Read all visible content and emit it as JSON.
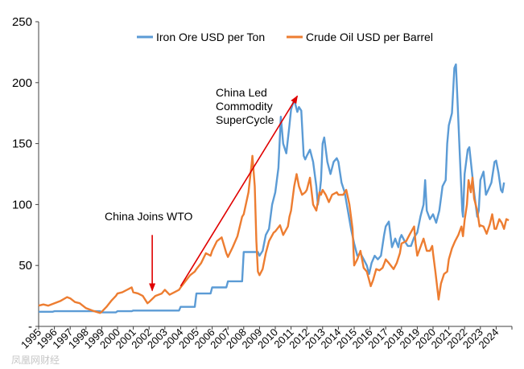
{
  "chart_data": {
    "type": "line",
    "title": "",
    "xlabel": "",
    "ylabel": "",
    "xlim": [
      1995,
      2025
    ],
    "ylim": [
      0,
      250
    ],
    "yticks": [
      0,
      50,
      100,
      150,
      200,
      250
    ],
    "ytick_labels": [
      "-",
      "50",
      "100",
      "150",
      "200",
      "250"
    ],
    "xtick_labels": [
      "1995",
      "1996",
      "1997",
      "1998",
      "1999",
      "2000",
      "2001",
      "2002",
      "2003",
      "2004",
      "2005",
      "2006",
      "2007",
      "2008",
      "2009",
      "2010",
      "2011",
      "2012",
      "2013",
      "2014",
      "2015",
      "2016",
      "2017",
      "2018",
      "2019",
      "2020",
      "2021",
      "2022",
      "2023",
      "2024"
    ],
    "grid": false,
    "legend_position": "top",
    "series": [
      {
        "name": "Iron Ore USD per Ton",
        "color": "#5b9bd5",
        "points": [
          [
            1995.0,
            12
          ],
          [
            1995.9,
            12
          ],
          [
            1996.0,
            12.5
          ],
          [
            1998.9,
            12.5
          ],
          [
            1999.0,
            11.5
          ],
          [
            1999.9,
            11.5
          ],
          [
            2000.0,
            12.5
          ],
          [
            2000.9,
            12.5
          ],
          [
            2001.0,
            13
          ],
          [
            2003.9,
            13
          ],
          [
            2004.0,
            16
          ],
          [
            2004.9,
            16
          ],
          [
            2005.0,
            27
          ],
          [
            2005.9,
            27
          ],
          [
            2006.0,
            32
          ],
          [
            2006.9,
            32
          ],
          [
            2007.0,
            37
          ],
          [
            2007.9,
            37
          ],
          [
            2008.0,
            61
          ],
          [
            2008.9,
            61
          ],
          [
            2009.0,
            58
          ],
          [
            2009.2,
            62
          ],
          [
            2009.4,
            75
          ],
          [
            2009.6,
            80
          ],
          [
            2009.8,
            100
          ],
          [
            2010.0,
            110
          ],
          [
            2010.2,
            130
          ],
          [
            2010.35,
            172
          ],
          [
            2010.5,
            150
          ],
          [
            2010.7,
            142
          ],
          [
            2010.9,
            165
          ],
          [
            2011.0,
            178
          ],
          [
            2011.2,
            186
          ],
          [
            2011.4,
            176
          ],
          [
            2011.5,
            180
          ],
          [
            2011.65,
            177
          ],
          [
            2011.8,
            140
          ],
          [
            2011.9,
            137
          ],
          [
            2012.0,
            140
          ],
          [
            2012.2,
            145
          ],
          [
            2012.4,
            135
          ],
          [
            2012.6,
            115
          ],
          [
            2012.7,
            100
          ],
          [
            2012.8,
            108
          ],
          [
            2012.9,
            120
          ],
          [
            2013.0,
            150
          ],
          [
            2013.1,
            155
          ],
          [
            2013.3,
            135
          ],
          [
            2013.5,
            125
          ],
          [
            2013.7,
            135
          ],
          [
            2013.9,
            138
          ],
          [
            2014.0,
            135
          ],
          [
            2014.2,
            118
          ],
          [
            2014.4,
            110
          ],
          [
            2014.6,
            95
          ],
          [
            2014.8,
            80
          ],
          [
            2015.0,
            68
          ],
          [
            2015.2,
            58
          ],
          [
            2015.4,
            60
          ],
          [
            2015.6,
            55
          ],
          [
            2015.8,
            50
          ],
          [
            2015.95,
            43
          ],
          [
            2016.1,
            52
          ],
          [
            2016.3,
            58
          ],
          [
            2016.5,
            55
          ],
          [
            2016.7,
            58
          ],
          [
            2016.9,
            75
          ],
          [
            2017.0,
            82
          ],
          [
            2017.2,
            86
          ],
          [
            2017.4,
            65
          ],
          [
            2017.6,
            72
          ],
          [
            2017.8,
            65
          ],
          [
            2017.9,
            72
          ],
          [
            2018.0,
            75
          ],
          [
            2018.2,
            70
          ],
          [
            2018.4,
            66
          ],
          [
            2018.6,
            66
          ],
          [
            2018.8,
            73
          ],
          [
            2019.0,
            77
          ],
          [
            2019.2,
            90
          ],
          [
            2019.4,
            100
          ],
          [
            2019.5,
            120
          ],
          [
            2019.6,
            95
          ],
          [
            2019.8,
            88
          ],
          [
            2020.0,
            92
          ],
          [
            2020.2,
            85
          ],
          [
            2020.4,
            95
          ],
          [
            2020.6,
            115
          ],
          [
            2020.8,
            120
          ],
          [
            2020.9,
            150
          ],
          [
            2021.0,
            165
          ],
          [
            2021.2,
            175
          ],
          [
            2021.35,
            212
          ],
          [
            2021.45,
            215
          ],
          [
            2021.55,
            185
          ],
          [
            2021.7,
            140
          ],
          [
            2021.85,
            95
          ],
          [
            2021.9,
            90
          ],
          [
            2022.0,
            125
          ],
          [
            2022.2,
            145
          ],
          [
            2022.3,
            147
          ],
          [
            2022.4,
            135
          ],
          [
            2022.6,
            110
          ],
          [
            2022.8,
            90
          ],
          [
            2022.9,
            95
          ],
          [
            2023.0,
            120
          ],
          [
            2023.2,
            127
          ],
          [
            2023.35,
            108
          ],
          [
            2023.5,
            112
          ],
          [
            2023.7,
            118
          ],
          [
            2023.9,
            135
          ],
          [
            2024.0,
            136
          ],
          [
            2024.15,
            126
          ],
          [
            2024.3,
            112
          ],
          [
            2024.4,
            110
          ],
          [
            2024.5,
            118
          ]
        ]
      },
      {
        "name": "Crude Oil USD per Barrel",
        "color": "#ed7d31",
        "points": [
          [
            1995.0,
            17
          ],
          [
            1995.3,
            18
          ],
          [
            1995.6,
            17
          ],
          [
            1996.0,
            19
          ],
          [
            1996.4,
            21
          ],
          [
            1996.8,
            24
          ],
          [
            1997.0,
            23
          ],
          [
            1997.3,
            20
          ],
          [
            1997.6,
            19
          ],
          [
            1998.0,
            15
          ],
          [
            1998.4,
            13
          ],
          [
            1998.9,
            11
          ],
          [
            1999.0,
            12
          ],
          [
            1999.3,
            16
          ],
          [
            1999.6,
            21
          ],
          [
            1999.9,
            25
          ],
          [
            2000.0,
            27
          ],
          [
            2000.3,
            28
          ],
          [
            2000.6,
            30
          ],
          [
            2000.9,
            32
          ],
          [
            2001.0,
            28
          ],
          [
            2001.3,
            27
          ],
          [
            2001.6,
            25
          ],
          [
            2001.9,
            19
          ],
          [
            2002.0,
            20
          ],
          [
            2002.4,
            25
          ],
          [
            2002.8,
            27
          ],
          [
            2003.0,
            30
          ],
          [
            2003.3,
            26
          ],
          [
            2003.6,
            28
          ],
          [
            2003.9,
            30
          ],
          [
            2004.0,
            32
          ],
          [
            2004.3,
            37
          ],
          [
            2004.6,
            42
          ],
          [
            2004.9,
            45
          ],
          [
            2005.0,
            47
          ],
          [
            2005.3,
            52
          ],
          [
            2005.6,
            60
          ],
          [
            2005.9,
            58
          ],
          [
            2006.0,
            62
          ],
          [
            2006.3,
            70
          ],
          [
            2006.6,
            73
          ],
          [
            2006.9,
            60
          ],
          [
            2007.0,
            57
          ],
          [
            2007.3,
            65
          ],
          [
            2007.6,
            74
          ],
          [
            2007.9,
            90
          ],
          [
            2008.0,
            92
          ],
          [
            2008.3,
            110
          ],
          [
            2008.5,
            133
          ],
          [
            2008.55,
            140
          ],
          [
            2008.7,
            115
          ],
          [
            2008.8,
            70
          ],
          [
            2008.9,
            45
          ],
          [
            2009.0,
            42
          ],
          [
            2009.2,
            47
          ],
          [
            2009.4,
            60
          ],
          [
            2009.6,
            70
          ],
          [
            2009.9,
            77
          ],
          [
            2010.0,
            78
          ],
          [
            2010.3,
            83
          ],
          [
            2010.5,
            75
          ],
          [
            2010.8,
            82
          ],
          [
            2010.9,
            90
          ],
          [
            2011.0,
            95
          ],
          [
            2011.2,
            115
          ],
          [
            2011.35,
            125
          ],
          [
            2011.5,
            115
          ],
          [
            2011.7,
            108
          ],
          [
            2011.9,
            110
          ],
          [
            2012.0,
            112
          ],
          [
            2012.2,
            122
          ],
          [
            2012.4,
            100
          ],
          [
            2012.6,
            95
          ],
          [
            2012.8,
            110
          ],
          [
            2012.9,
            108
          ],
          [
            2013.0,
            112
          ],
          [
            2013.2,
            108
          ],
          [
            2013.4,
            102
          ],
          [
            2013.6,
            108
          ],
          [
            2013.9,
            110
          ],
          [
            2014.0,
            108
          ],
          [
            2014.3,
            108
          ],
          [
            2014.5,
            112
          ],
          [
            2014.7,
            100
          ],
          [
            2014.9,
            80
          ],
          [
            2015.0,
            50
          ],
          [
            2015.2,
            55
          ],
          [
            2015.4,
            62
          ],
          [
            2015.6,
            48
          ],
          [
            2015.8,
            45
          ],
          [
            2015.95,
            38
          ],
          [
            2016.05,
            33
          ],
          [
            2016.2,
            38
          ],
          [
            2016.4,
            47
          ],
          [
            2016.6,
            46
          ],
          [
            2016.8,
            48
          ],
          [
            2016.95,
            53
          ],
          [
            2017.0,
            55
          ],
          [
            2017.2,
            52
          ],
          [
            2017.5,
            47
          ],
          [
            2017.7,
            52
          ],
          [
            2017.9,
            60
          ],
          [
            2018.0,
            68
          ],
          [
            2018.3,
            70
          ],
          [
            2018.5,
            75
          ],
          [
            2018.8,
            82
          ],
          [
            2018.9,
            68
          ],
          [
            2019.0,
            58
          ],
          [
            2019.2,
            65
          ],
          [
            2019.4,
            72
          ],
          [
            2019.6,
            62
          ],
          [
            2019.8,
            62
          ],
          [
            2019.95,
            66
          ],
          [
            2020.0,
            60
          ],
          [
            2020.15,
            45
          ],
          [
            2020.3,
            28
          ],
          [
            2020.35,
            22
          ],
          [
            2020.5,
            35
          ],
          [
            2020.7,
            43
          ],
          [
            2020.9,
            45
          ],
          [
            2021.0,
            55
          ],
          [
            2021.2,
            64
          ],
          [
            2021.4,
            70
          ],
          [
            2021.6,
            75
          ],
          [
            2021.8,
            82
          ],
          [
            2021.9,
            74
          ],
          [
            2022.0,
            87
          ],
          [
            2022.15,
            100
          ],
          [
            2022.25,
            120
          ],
          [
            2022.4,
            110
          ],
          [
            2022.5,
            122
          ],
          [
            2022.6,
            105
          ],
          [
            2022.8,
            95
          ],
          [
            2022.95,
            82
          ],
          [
            2023.0,
            83
          ],
          [
            2023.2,
            82
          ],
          [
            2023.4,
            76
          ],
          [
            2023.6,
            84
          ],
          [
            2023.75,
            92
          ],
          [
            2023.9,
            80
          ],
          [
            2024.0,
            80
          ],
          [
            2024.2,
            88
          ],
          [
            2024.35,
            85
          ],
          [
            2024.5,
            80
          ],
          [
            2024.65,
            88
          ],
          [
            2024.8,
            87
          ]
        ]
      }
    ],
    "annotations": [
      {
        "text": "China Joins WTO",
        "target": [
          2002.2,
          28
        ],
        "label_at": [
          2001.6,
          90
        ]
      },
      {
        "text_lines": [
          "China Led",
          "Commodity",
          "SuperCycle"
        ],
        "from": [
          2004.0,
          33
        ],
        "to": [
          2011.4,
          189
        ],
        "label_at": [
          2009.5,
          195
        ]
      }
    ]
  },
  "watermark": "凤凰网财经"
}
